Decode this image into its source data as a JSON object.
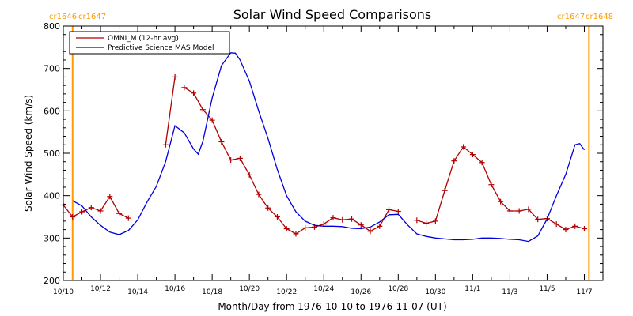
{
  "chart_data": {
    "type": "line",
    "title": "Solar Wind Speed Comparisons",
    "xlabel": "Month/Day from 1976-10-10 to 1976-11-07 (UT)",
    "ylabel": "Solar Wind Speed (km/s)",
    "xlim": [
      "1976-10-10",
      "1976-11-08"
    ],
    "ylim": [
      200,
      800
    ],
    "x_ticks": [
      "10/10",
      "10/12",
      "10/14",
      "10/16",
      "10/18",
      "10/20",
      "10/22",
      "10/24",
      "10/26",
      "10/28",
      "10/30",
      "11/1",
      "11/3",
      "11/5",
      "11/7"
    ],
    "y_ticks": [
      200,
      300,
      400,
      500,
      600,
      700,
      800
    ],
    "legend_position": "top-left",
    "carrington_markers": [
      {
        "x": "1976-10-10 12:00",
        "label_left": "cr1646",
        "label_right": "cr1647",
        "side": "left"
      },
      {
        "x": "1976-11-07 06:00",
        "label_left": "cr1647",
        "label_right": "cr1648",
        "side": "right"
      }
    ],
    "colors": {
      "omni": "#b00000",
      "mas": "#0000dd",
      "marker": "#ff9900",
      "axis": "#000000"
    },
    "series": [
      {
        "name": "OMNI_M (12-hr avg)",
        "color": "#b00000",
        "segments": [
          [
            [
              "1976-10-10 00:00",
              378
            ],
            [
              "1976-10-10 12:00",
              350
            ],
            [
              "1976-10-11 00:00",
              362
            ],
            [
              "1976-10-11 12:00",
              372
            ],
            [
              "1976-10-12 00:00",
              364
            ],
            [
              "1976-10-12 12:00",
              398
            ],
            [
              "1976-10-13 00:00",
              358
            ],
            [
              "1976-10-13 12:00",
              347
            ]
          ],
          [
            [
              "1976-10-15 12:00",
              520
            ],
            [
              "1976-10-16 00:00",
              680
            ]
          ],
          [
            [
              "1976-10-16 12:00",
              655
            ],
            [
              "1976-10-17 00:00",
              642
            ],
            [
              "1976-10-17 12:00",
              603
            ],
            [
              "1976-10-18 00:00",
              578
            ],
            [
              "1976-10-18 12:00",
              527
            ],
            [
              "1976-10-19 00:00",
              484
            ],
            [
              "1976-10-19 12:00",
              488
            ],
            [
              "1976-10-20 00:00",
              449
            ],
            [
              "1976-10-20 12:00",
              403
            ],
            [
              "1976-10-21 00:00",
              371
            ],
            [
              "1976-10-21 12:00",
              350
            ],
            [
              "1976-10-22 00:00",
              322
            ],
            [
              "1976-10-22 12:00",
              310
            ],
            [
              "1976-10-23 00:00",
              324
            ],
            [
              "1976-10-23 12:00",
              326
            ],
            [
              "1976-10-24 00:00",
              333
            ],
            [
              "1976-10-24 12:00",
              348
            ],
            [
              "1976-10-25 00:00",
              343
            ],
            [
              "1976-10-25 12:00",
              345
            ],
            [
              "1976-10-26 00:00",
              331
            ],
            [
              "1976-10-26 12:00",
              316
            ],
            [
              "1976-10-27 00:00",
              328
            ],
            [
              "1976-10-27 12:00",
              367
            ],
            [
              "1976-10-28 00:00",
              363
            ]
          ],
          [
            [
              "1976-10-29 00:00",
              342
            ],
            [
              "1976-10-29 12:00",
              335
            ],
            [
              "1976-10-30 00:00",
              340
            ],
            [
              "1976-10-30 12:00",
              412
            ],
            [
              "1976-10-31 00:00",
              482
            ],
            [
              "1976-10-31 12:00",
              515
            ],
            [
              "1976-11-01 00:00",
              497
            ],
            [
              "1976-11-01 12:00",
              478
            ],
            [
              "1976-11-02 00:00",
              426
            ],
            [
              "1976-11-02 12:00",
              386
            ],
            [
              "1976-11-03 00:00",
              364
            ],
            [
              "1976-11-03 12:00",
              364
            ],
            [
              "1976-11-04 00:00",
              368
            ],
            [
              "1976-11-04 12:00",
              344
            ],
            [
              "1976-11-05 00:00",
              346
            ],
            [
              "1976-11-05 12:00",
              333
            ],
            [
              "1976-11-06 00:00",
              320
            ],
            [
              "1976-11-06 12:00",
              328
            ],
            [
              "1976-11-07 00:00",
              322
            ]
          ]
        ]
      },
      {
        "name": "Predictive Science MAS Model",
        "color": "#0000dd",
        "segments": [
          [
            [
              "1976-10-10 12:00",
              388
            ],
            [
              "1976-10-11 00:00",
              376
            ],
            [
              "1976-10-11 12:00",
              350
            ],
            [
              "1976-10-12 00:00",
              330
            ],
            [
              "1976-10-12 12:00",
              314
            ],
            [
              "1976-10-13 00:00",
              308
            ],
            [
              "1976-10-13 12:00",
              318
            ],
            [
              "1976-10-14 00:00",
              343
            ],
            [
              "1976-10-14 12:00",
              385
            ],
            [
              "1976-10-15 00:00",
              422
            ],
            [
              "1976-10-15 12:00",
              480
            ],
            [
              "1976-10-16 00:00",
              565
            ],
            [
              "1976-10-16 12:00",
              548
            ],
            [
              "1976-10-17 00:00",
              510
            ],
            [
              "1976-10-17 06:00",
              498
            ],
            [
              "1976-10-17 12:00",
              528
            ],
            [
              "1976-10-18 00:00",
              630
            ],
            [
              "1976-10-18 12:00",
              707
            ],
            [
              "1976-10-19 00:00",
              737
            ],
            [
              "1976-10-19 06:00",
              736
            ],
            [
              "1976-10-19 12:00",
              720
            ],
            [
              "1976-10-20 00:00",
              670
            ],
            [
              "1976-10-20 12:00",
              600
            ],
            [
              "1976-10-21 00:00",
              535
            ],
            [
              "1976-10-21 12:00",
              462
            ],
            [
              "1976-10-22 00:00",
              400
            ],
            [
              "1976-10-22 12:00",
              362
            ],
            [
              "1976-10-23 00:00",
              340
            ],
            [
              "1976-10-23 12:00",
              330
            ],
            [
              "1976-10-24 00:00",
              328
            ],
            [
              "1976-10-24 12:00",
              328
            ],
            [
              "1976-10-25 00:00",
              327
            ],
            [
              "1976-10-25 12:00",
              323
            ],
            [
              "1976-10-26 00:00",
              322
            ],
            [
              "1976-10-26 12:00",
              326
            ],
            [
              "1976-10-27 00:00",
              338
            ],
            [
              "1976-10-27 12:00",
              355
            ],
            [
              "1976-10-28 00:00",
              356
            ],
            [
              "1976-10-28 12:00",
              331
            ],
            [
              "1976-10-29 00:00",
              310
            ],
            [
              "1976-10-29 12:00",
              304
            ],
            [
              "1976-10-30 00:00",
              300
            ],
            [
              "1976-10-30 12:00",
              298
            ],
            [
              "1976-10-31 00:00",
              296
            ],
            [
              "1976-10-31 12:00",
              296
            ],
            [
              "1976-11-01 00:00",
              297
            ],
            [
              "1976-11-01 12:00",
              300
            ],
            [
              "1976-11-02 00:00",
              300
            ],
            [
              "1976-11-02 12:00",
              299
            ],
            [
              "1976-11-03 00:00",
              297
            ],
            [
              "1976-11-03 12:00",
              296
            ],
            [
              "1976-11-04 00:00",
              292
            ],
            [
              "1976-11-04 12:00",
              305
            ],
            [
              "1976-11-05 00:00",
              345
            ],
            [
              "1976-11-05 12:00",
              400
            ],
            [
              "1976-11-06 00:00",
              450
            ],
            [
              "1976-11-06 12:00",
              520
            ],
            [
              "1976-11-06 18:00",
              523
            ],
            [
              "1976-11-07 00:00",
              508
            ]
          ]
        ]
      }
    ]
  }
}
